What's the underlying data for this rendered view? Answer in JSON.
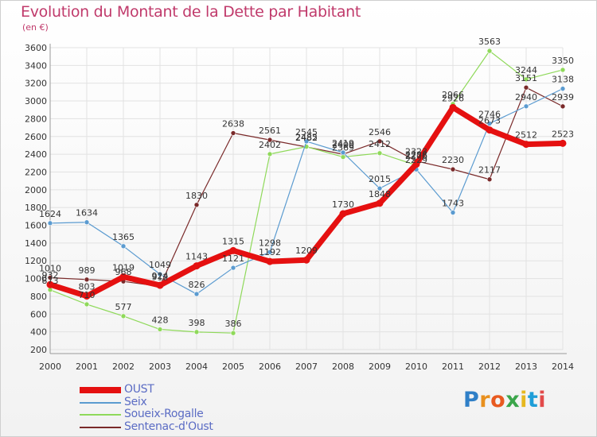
{
  "title": "Evolution du Montant de la Dette par Habitant",
  "subtitle": "(en €)",
  "logo": {
    "text": "Proxiti",
    "letter_colors": [
      "#2f7fc7",
      "#e8901e",
      "#e85a20",
      "#3aa54a",
      "#e6b820",
      "#1f9ed8",
      "#e24a4a"
    ]
  },
  "chart_data": {
    "type": "line",
    "x": [
      "2000",
      "2001",
      "2002",
      "2003",
      "2004",
      "2005",
      "2006",
      "2007",
      "2008",
      "2009",
      "2010",
      "2011",
      "2012",
      "2013",
      "2014"
    ],
    "ylim": [
      200,
      3600
    ],
    "yticks": [
      200,
      400,
      600,
      800,
      1000,
      1200,
      1400,
      1600,
      1800,
      2000,
      2200,
      2400,
      2600,
      2800,
      3000,
      3200,
      3400,
      3600
    ],
    "grid": true,
    "legend_position": "bottom-left",
    "series": [
      {
        "name": "Sentenac-d'Oust",
        "color": "#7a2a2a",
        "width": 1.2,
        "marker": true,
        "values": [
          1010,
          989,
          968,
          912,
          1830,
          2638,
          2561,
          2482,
          2400,
          2546,
          2323,
          2230,
          2117,
          3151,
          2939
        ]
      },
      {
        "name": "Soueix-Rogalle",
        "color": "#8fd95a",
        "width": 1.2,
        "marker": true,
        "values": [
          873,
          710,
          577,
          428,
          398,
          386,
          2402,
          2485,
          2369,
          2412,
          2276,
          2966,
          3563,
          3244,
          3350
        ]
      },
      {
        "name": "Seix",
        "color": "#5b9bd0",
        "width": 1.2,
        "marker": true,
        "values": [
          1624,
          1634,
          1365,
          1049,
          826,
          1121,
          1298,
          2545,
          2419,
          2015,
          2229,
          1743,
          2746,
          2940,
          3138
        ]
      },
      {
        "name": "OUST",
        "color": "#e51010",
        "width": 7,
        "marker": true,
        "values": [
          932,
          803,
          1019,
          924,
          1143,
          1315,
          1192,
          1209,
          1730,
          1848,
          2288,
          2926,
          2673,
          2512,
          2523
        ]
      }
    ],
    "legend_order": [
      "OUST",
      "Seix",
      "Soueix-Rogalle",
      "Sentenac-d'Oust"
    ]
  }
}
